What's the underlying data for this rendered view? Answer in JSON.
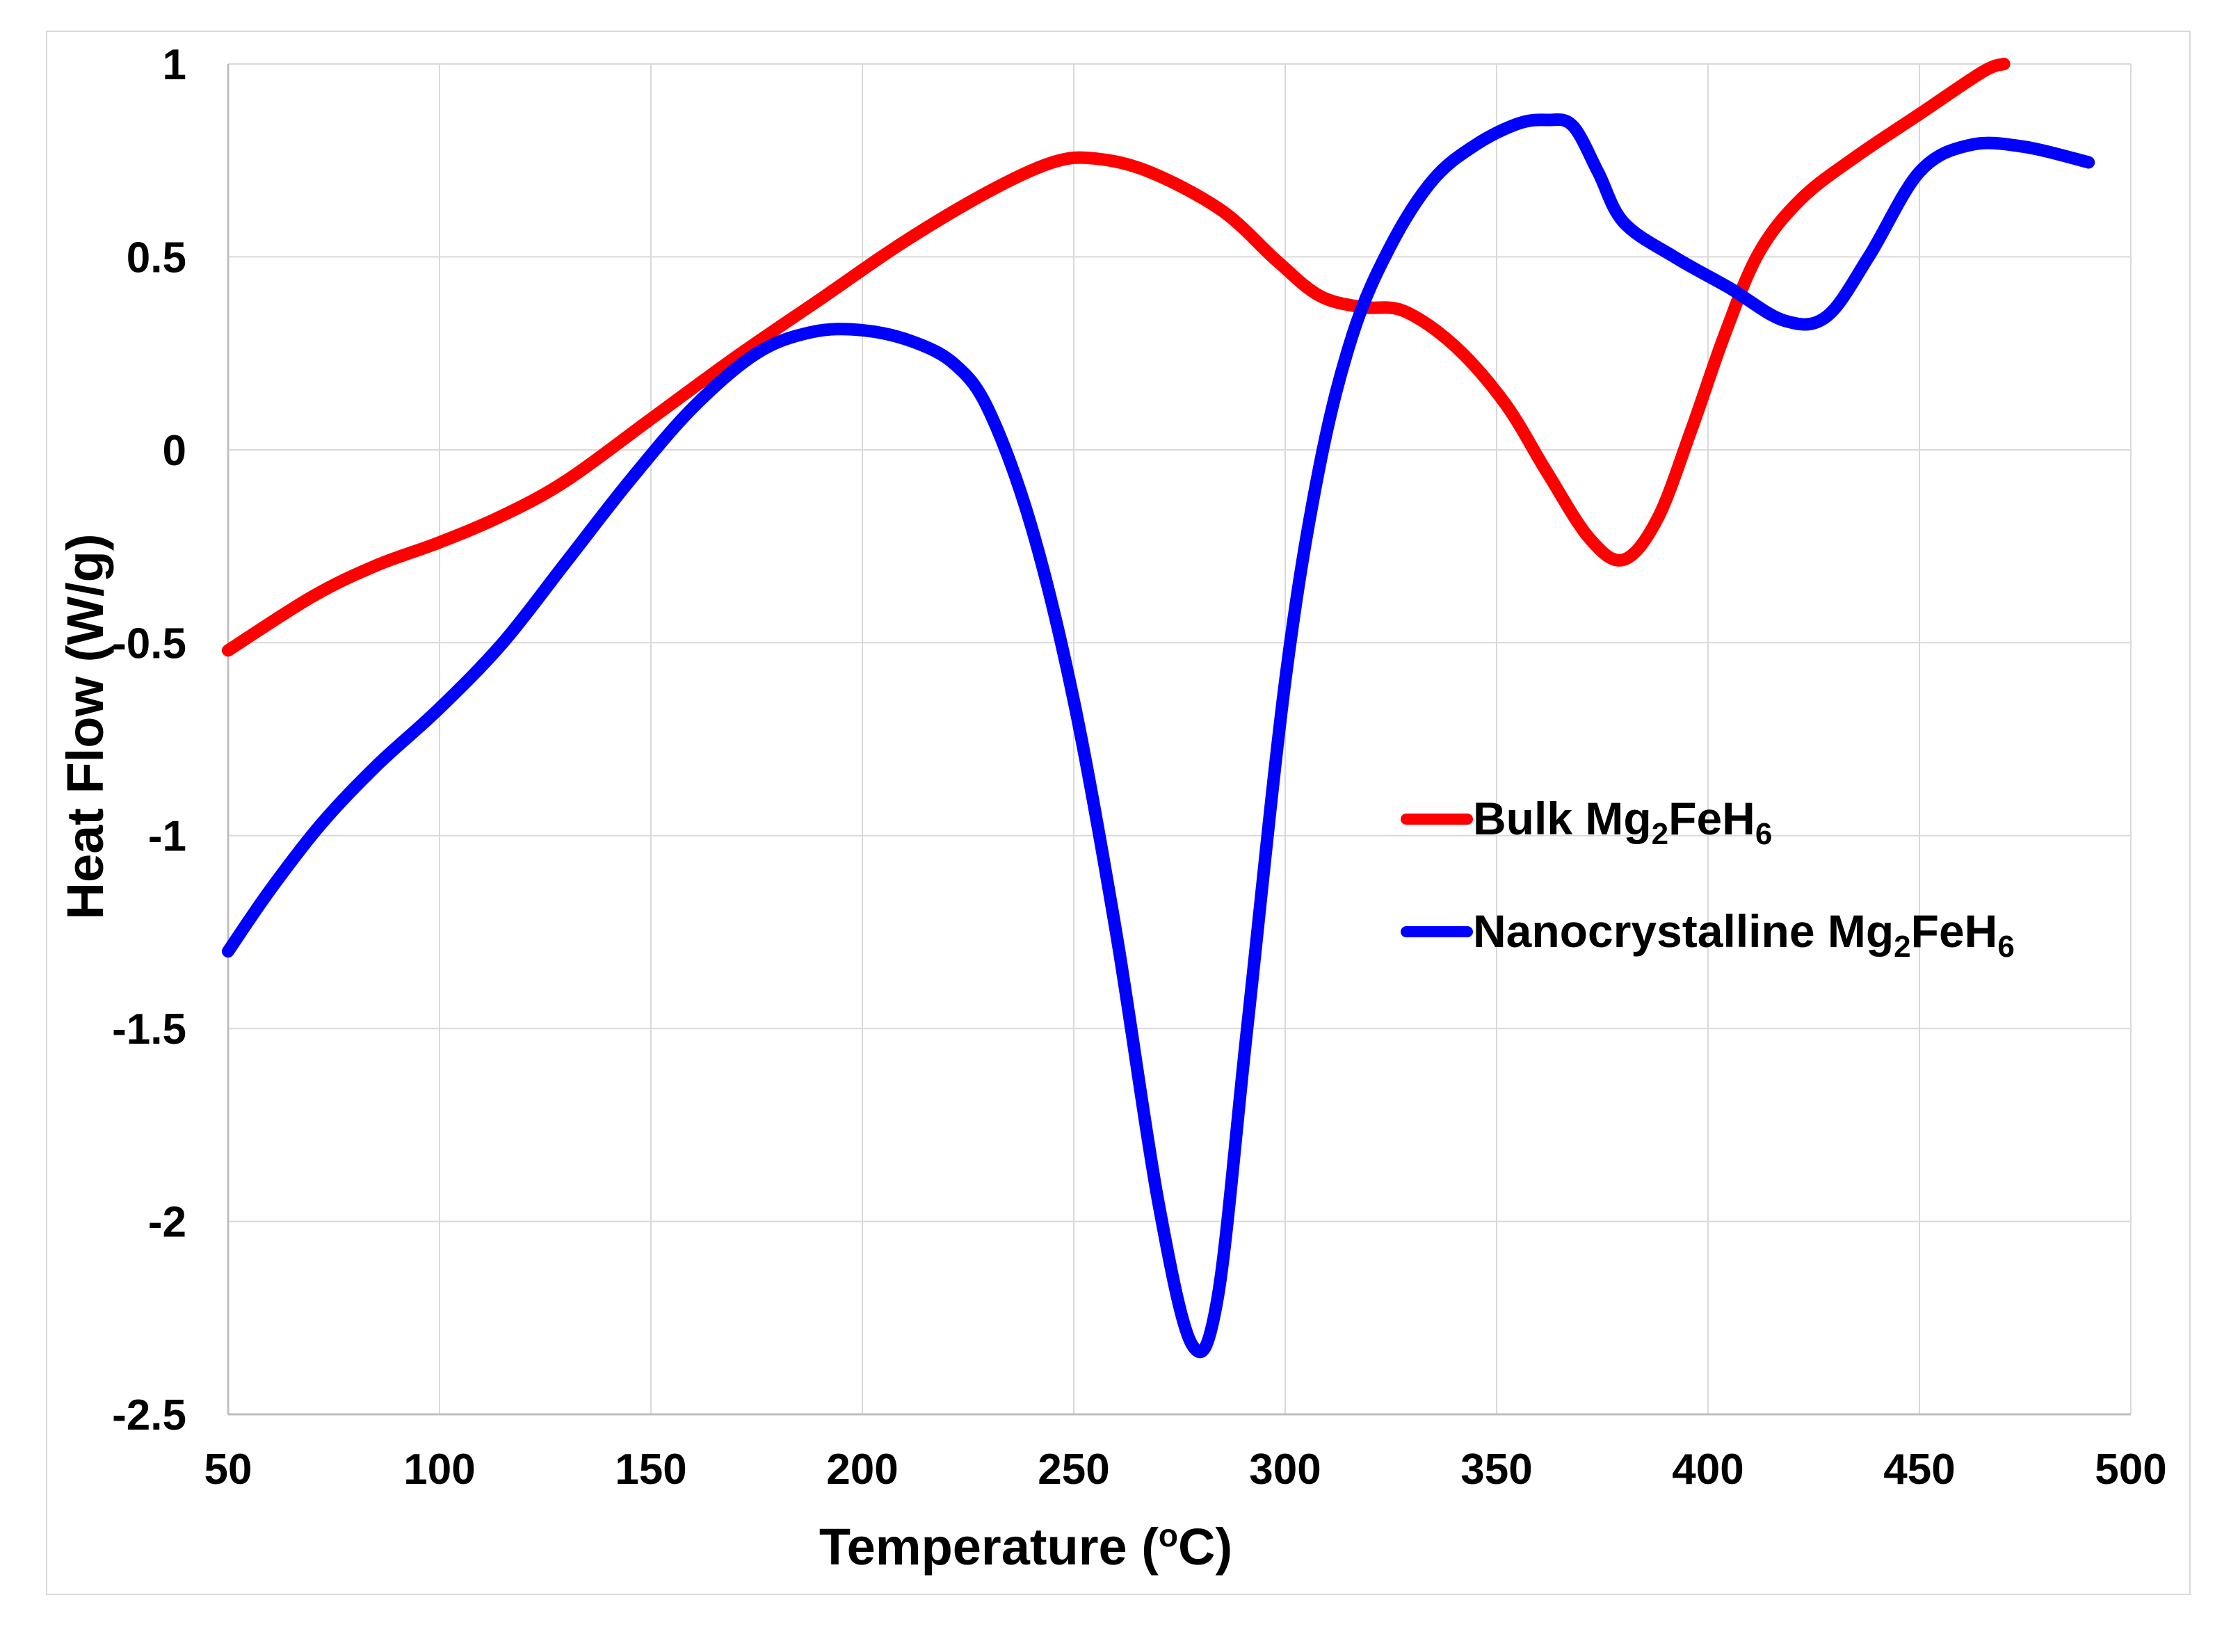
{
  "chart_data": {
    "type": "line",
    "title": "",
    "xlabel": {
      "main": "Temperature (",
      "sup": "o",
      "after": "C)"
    },
    "ylabel": "Heat Flow (W/g)",
    "xlim": [
      50,
      500
    ],
    "ylim": [
      -2.5,
      1
    ],
    "x_ticks": [
      50,
      100,
      150,
      200,
      250,
      300,
      350,
      400,
      450,
      500
    ],
    "y_ticks": [
      1,
      0.5,
      0,
      -0.5,
      -1,
      -1.5,
      -2,
      -2.5
    ],
    "grid": true,
    "legend_position": "center-right",
    "series": [
      {
        "name": "Bulk Mg2FeH6",
        "legend": {
          "prefix": "Bulk Mg",
          "sub1": "2",
          "mid": "FeH",
          "sub2": "6"
        },
        "color": "#ff0000",
        "points": [
          [
            50,
            -0.52
          ],
          [
            70,
            -0.38
          ],
          [
            85,
            -0.3
          ],
          [
            100,
            -0.24
          ],
          [
            115,
            -0.17
          ],
          [
            130,
            -0.08
          ],
          [
            150,
            0.08
          ],
          [
            170,
            0.24
          ],
          [
            190,
            0.39
          ],
          [
            210,
            0.54
          ],
          [
            230,
            0.67
          ],
          [
            245,
            0.745
          ],
          [
            255,
            0.755
          ],
          [
            268,
            0.72
          ],
          [
            285,
            0.62
          ],
          [
            298,
            0.49
          ],
          [
            308,
            0.4
          ],
          [
            318,
            0.37
          ],
          [
            328,
            0.36
          ],
          [
            340,
            0.27
          ],
          [
            352,
            0.12
          ],
          [
            362,
            -0.06
          ],
          [
            372,
            -0.23
          ],
          [
            380,
            -0.285
          ],
          [
            388,
            -0.18
          ],
          [
            396,
            0.05
          ],
          [
            404,
            0.3
          ],
          [
            412,
            0.51
          ],
          [
            422,
            0.65
          ],
          [
            435,
            0.76
          ],
          [
            450,
            0.87
          ],
          [
            465,
            0.98
          ],
          [
            470,
            1.0
          ]
        ]
      },
      {
        "name": "Nanocrystalline Mg2FeH6",
        "legend": {
          "prefix": "Nanocrystalline Mg",
          "sub1": "2",
          "mid": "FeH",
          "sub2": "6"
        },
        "color": "#0000ff",
        "points": [
          [
            50,
            -1.3
          ],
          [
            60,
            -1.14
          ],
          [
            72,
            -0.97
          ],
          [
            85,
            -0.82
          ],
          [
            100,
            -0.67
          ],
          [
            115,
            -0.5
          ],
          [
            130,
            -0.29
          ],
          [
            145,
            -0.08
          ],
          [
            160,
            0.11
          ],
          [
            175,
            0.25
          ],
          [
            188,
            0.305
          ],
          [
            200,
            0.31
          ],
          [
            212,
            0.28
          ],
          [
            222,
            0.22
          ],
          [
            230,
            0.1
          ],
          [
            240,
            -0.2
          ],
          [
            250,
            -0.65
          ],
          [
            260,
            -1.25
          ],
          [
            270,
            -1.95
          ],
          [
            278,
            -2.32
          ],
          [
            284,
            -2.2
          ],
          [
            291,
            -1.5
          ],
          [
            300,
            -0.6
          ],
          [
            308,
            -0.05
          ],
          [
            316,
            0.3
          ],
          [
            325,
            0.53
          ],
          [
            335,
            0.7
          ],
          [
            345,
            0.79
          ],
          [
            355,
            0.845
          ],
          [
            362,
            0.855
          ],
          [
            368,
            0.84
          ],
          [
            374,
            0.72
          ],
          [
            380,
            0.59
          ],
          [
            392,
            0.5
          ],
          [
            405,
            0.42
          ],
          [
            418,
            0.335
          ],
          [
            428,
            0.345
          ],
          [
            438,
            0.5
          ],
          [
            450,
            0.72
          ],
          [
            462,
            0.79
          ],
          [
            475,
            0.785
          ],
          [
            490,
            0.745
          ]
        ]
      }
    ]
  }
}
